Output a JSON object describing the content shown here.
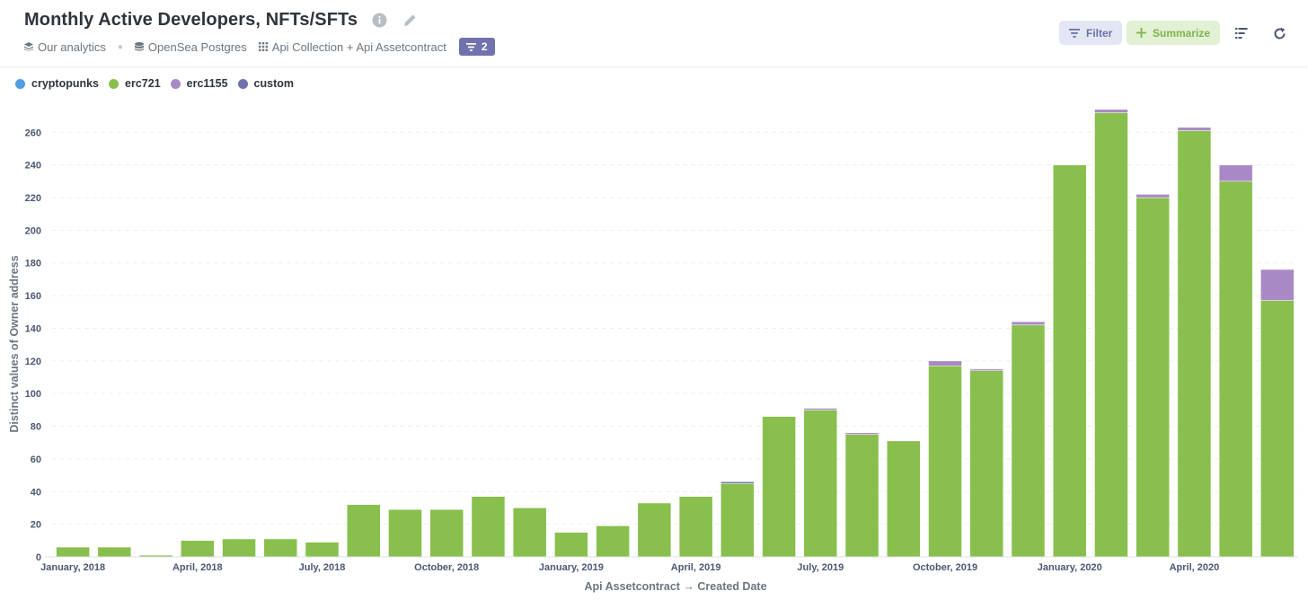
{
  "header": {
    "title": "Monthly Active Developers, NFTs/SFTs",
    "breadcrumbs": [
      "Our analytics",
      "OpenSea Postgres",
      "Api Collection + Api Assetcontract"
    ],
    "filter_count": "2",
    "buttons": {
      "filter": "Filter",
      "summarize": "Summarize"
    }
  },
  "colors": {
    "cryptopunks": "#509ee3",
    "erc721": "#88bf4d",
    "erc1155": "#a989c5",
    "custom": "#7172ad"
  },
  "chart_data": {
    "type": "bar",
    "stacked": true,
    "xlabel": "Api Assetcontract → Created Date",
    "ylabel": "Distinct values of Owner address",
    "ylim": [
      0,
      275
    ],
    "yticks": [
      0,
      20,
      40,
      60,
      80,
      100,
      120,
      140,
      160,
      180,
      200,
      220,
      240,
      260
    ],
    "grid": "horizontal dashed",
    "legend_position": "top-left",
    "categories": [
      "2018-01",
      "2018-02",
      "2018-03",
      "2018-04",
      "2018-05",
      "2018-06",
      "2018-07",
      "2018-08",
      "2018-09",
      "2018-10",
      "2018-11",
      "2018-12",
      "2019-01",
      "2019-02",
      "2019-03",
      "2019-04",
      "2019-05",
      "2019-06",
      "2019-07",
      "2019-08",
      "2019-09",
      "2019-10",
      "2019-11",
      "2019-12",
      "2020-01",
      "2020-02",
      "2020-03",
      "2020-04",
      "2020-05",
      "2020-06"
    ],
    "xtick_labels": [
      {
        "index": 0,
        "label": "January, 2018"
      },
      {
        "index": 3,
        "label": "April, 2018"
      },
      {
        "index": 6,
        "label": "July, 2018"
      },
      {
        "index": 9,
        "label": "October, 2018"
      },
      {
        "index": 12,
        "label": "January, 2019"
      },
      {
        "index": 15,
        "label": "April, 2019"
      },
      {
        "index": 18,
        "label": "July, 2019"
      },
      {
        "index": 21,
        "label": "October, 2019"
      },
      {
        "index": 24,
        "label": "January, 2020"
      },
      {
        "index": 27,
        "label": "April, 2020"
      }
    ],
    "series": [
      {
        "name": "cryptopunks",
        "values": [
          0,
          0,
          0,
          0,
          0,
          0,
          0,
          0,
          0,
          0,
          0,
          0,
          0,
          0,
          0,
          0,
          0,
          0,
          0,
          0,
          0,
          0,
          0,
          0,
          0,
          0,
          0,
          0,
          0,
          0
        ]
      },
      {
        "name": "erc721",
        "values": [
          6,
          6,
          1,
          10,
          11,
          11,
          9,
          32,
          29,
          29,
          37,
          30,
          15,
          19,
          33,
          37,
          45,
          86,
          90,
          75,
          71,
          117,
          114,
          142,
          240,
          272,
          220,
          261,
          230,
          157
        ]
      },
      {
        "name": "erc1155",
        "values": [
          0,
          0,
          0,
          0,
          0,
          0,
          0,
          0,
          0,
          0,
          0,
          0,
          0,
          0,
          0,
          0,
          0,
          0,
          1,
          1,
          0,
          3,
          1,
          2,
          0,
          2,
          2,
          2,
          10,
          19
        ]
      },
      {
        "name": "custom",
        "values": [
          0,
          0,
          0,
          0,
          0,
          0,
          0,
          0,
          0,
          0,
          0,
          0,
          0,
          0,
          0,
          0,
          1,
          0,
          0,
          0,
          0,
          0,
          0,
          0,
          0,
          0,
          0,
          0,
          0,
          0
        ]
      }
    ]
  }
}
